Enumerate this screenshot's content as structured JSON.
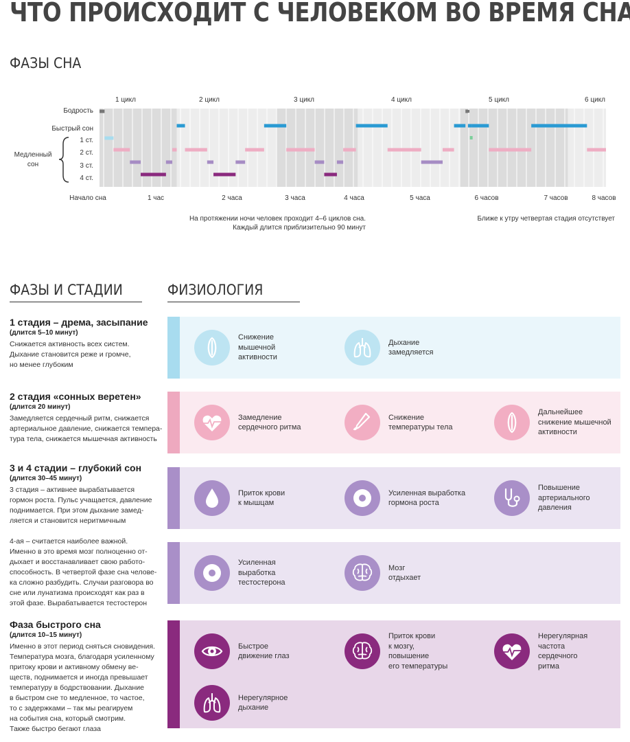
{
  "title": "ЧТО ПРОИСХОДИТ С ЧЕЛОВЕКОМ ВО ВРЕМЯ СНА",
  "phases_heading": "ФАЗЫ СНА",
  "hypnogram": {
    "cycles": [
      "1 цикл",
      "2 цикл",
      "3 цикл",
      "4 цикл",
      "5 цикл",
      "6 цикл"
    ],
    "levels": {
      "wake": "Бодрость",
      "rem": "Быстрый сон",
      "nrem_group": "Медленный сон",
      "s1": "1 ст.",
      "s2": "2 ст.",
      "s3": "3 ст.",
      "s4": "4 ст."
    },
    "time_labels": [
      "Начало сна",
      "1 час",
      "2 часа",
      "3 часа",
      "4 часа",
      "5 часа",
      "6 часов",
      "7 часов",
      "8 часов"
    ],
    "note_center_1": "На протяжении ночи человек проходит 4–6 циклов сна.",
    "note_center_2": "Каждый длится приблизительно 90 минут",
    "note_right": "Ближе к утру четвертая стадия отсутствует",
    "colors": {
      "rem": "#2a9ad3",
      "s1": "#a7dcef",
      "s2": "#eeadc3",
      "s3": "#a68cc4",
      "s4": "#8a2a7e",
      "wake": "#777777"
    }
  },
  "stages_heading": "ФАЗЫ И СТАДИИ",
  "physiology_heading": "ФИЗИОЛОГИЯ",
  "stages": [
    {
      "title": "1 стадия – дрема, засыпание",
      "duration": "(длится 5–10 минут)",
      "lines": [
        "Снижается активность всех систем.",
        "Дыхание становится реже и громче,",
        "но менее глубоким"
      ]
    },
    {
      "title": "2 стадия «сонных веретен»",
      "duration": "(длится 20 минут)",
      "lines": [
        "Замедляется сердечный ритм, снижается",
        "артериальное давление, снижается темпера-",
        "тура тела, снижается мышечная активность"
      ]
    },
    {
      "title": "3 и 4 стадии – глубокий сон",
      "duration": "(длится 30–45 минут)",
      "lines": [
        "3 стадия – активнее вырабатывается",
        "гормон роста. Пульс учащается, давление",
        "поднимается. При этом дыхание замед-",
        "ляется и становится неритмичным"
      ]
    },
    {
      "title": "",
      "duration": "",
      "lines": [
        "4-ая – считается наиболее важной.",
        "Именно в это время мозг полноценно от-",
        "дыхает и восстанавливает свою работо-",
        "способность. В четвертой фазе сна челове-",
        "ка сложно разбудить. Случаи разговора во",
        "сне или лунатизма происходят как раз в",
        "этой фазе. Вырабатывается тестостерон"
      ]
    },
    {
      "title": "Фаза быстрого сна",
      "duration": "(длится 10–15 минут)",
      "lines": [
        "Именно в этот период сняться сновидения.",
        "Температура мозга, благодаря усиленному",
        "притоку крови и активному обмену ве-",
        "ществ, поднимается и иногда превышает",
        "температуру в бодрствовании. Дыхание",
        "в быстром сне то медленное, то частое,",
        "то с задержками – так мы реагируем",
        "на события сна, который смотрим.",
        "Также быстро бегают глаза"
      ]
    }
  ],
  "physiology": [
    {
      "bar_color": "#a8dcef",
      "bg_color": "#eaf6fb",
      "icon_bg": "#bde4f2",
      "items": [
        {
          "icon": "muscle-icon",
          "lines": [
            "Снижение",
            "мышечной",
            "активности"
          ]
        },
        {
          "icon": "lungs-icon",
          "lines": [
            "Дыхание",
            "замедляется"
          ]
        }
      ]
    },
    {
      "bar_color": "#eea9bf",
      "bg_color": "#fbeaf0",
      "icon_bg": "#f2aec3",
      "items": [
        {
          "icon": "heart-pulse-icon",
          "lines": [
            "Замедление",
            "сердечного ритма"
          ]
        },
        {
          "icon": "thermometer-icon",
          "lines": [
            "Снижение",
            "температуры тела"
          ]
        },
        {
          "icon": "muscle-icon",
          "lines": [
            "Дальнейшее",
            "снижение мышечной",
            "активности"
          ]
        }
      ]
    },
    {
      "bar_color": "#a98fc8",
      "bg_color": "#ebe4f2",
      "icon_bg": "#a98fc8",
      "items": [
        {
          "icon": "blood-drop-icon",
          "lines": [
            "Приток крови",
            "к мышцам"
          ]
        },
        {
          "icon": "hormone-cell-icon",
          "lines": [
            "Усиленная выработка",
            "гормона роста"
          ]
        },
        {
          "icon": "stethoscope-icon",
          "lines": [
            "Повышение",
            "артериального",
            "давления"
          ]
        }
      ]
    },
    {
      "bar_color": "#a98fc8",
      "bg_color": "#ebe4f2",
      "icon_bg": "#a98fc8",
      "items": [
        {
          "icon": "hormone-cell-icon",
          "lines": [
            "Усиленная",
            "выработка",
            "тестостерона"
          ]
        },
        {
          "icon": "brain-icon",
          "lines": [
            "Мозг",
            "отдыхает"
          ]
        }
      ]
    },
    {
      "bar_color": "#8a2a7e",
      "bg_color": "#e8d7e9",
      "icon_bg": "#8a2a7e",
      "items": [
        {
          "icon": "eye-icon",
          "lines": [
            "Быстрое",
            "движение глаз"
          ]
        },
        {
          "icon": "brain-icon",
          "lines": [
            "Приток крови",
            "к мозгу,",
            "повышение",
            "его температуры"
          ]
        },
        {
          "icon": "heart-pulse-icon",
          "lines": [
            "Нерегулярная",
            "частота",
            "сердечного",
            "ритма"
          ]
        },
        {
          "icon": "lungs-icon",
          "lines": [
            "Нерегулярное",
            "дыхание"
          ]
        }
      ]
    }
  ]
}
